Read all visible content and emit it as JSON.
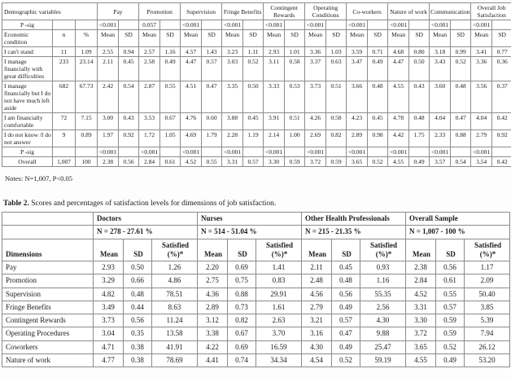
{
  "table1": {
    "corner_label": "Demographic variables",
    "psig_label": "P -sig",
    "subheader_label": "Economic condition",
    "n_label": "n",
    "pct_label": "%",
    "mean_label": "Mean",
    "sd_label": "SD",
    "groups": [
      "Pay",
      "Promotion",
      "Supervision",
      "Fringe Benefits",
      "Contingent Rewards",
      "Operating Conditions",
      "Co-workers",
      "Nature of work",
      "Communication",
      "Overall Job Satisfaction"
    ],
    "psig_top": [
      "<0.001",
      "0.057",
      "<0.001",
      "<0.001",
      "<0.001",
      "<0.001",
      "<0.001",
      "<0.001",
      "<0.001",
      "<0.001"
    ],
    "rows": [
      {
        "label": "I can't stand",
        "n": "11",
        "pct": "1.09",
        "values": [
          "2.55",
          "0.94",
          "2.57",
          "1.16",
          "4.57",
          "1.43",
          "3.23",
          "1.11",
          "2.93",
          "1.01",
          "3.36",
          "1.03",
          "3.59",
          "0.71",
          "4.68",
          "0.80",
          "3.18",
          "0.99",
          "3.41",
          "0.77"
        ]
      },
      {
        "label": "I manage financially with great difficulties",
        "n": "233",
        "pct": "23.14",
        "values": [
          "2.11",
          "0.45",
          "2.58",
          "0.49",
          "4.47",
          "0.57",
          "3.03",
          "0.52",
          "3.11",
          "0.58",
          "3.37",
          "0.63",
          "3.47",
          "0.49",
          "4.47",
          "0.50",
          "3.43",
          "0.52",
          "3.36",
          "0.36"
        ]
      },
      {
        "label": "I manage financially but I do not have much left aside",
        "n": "682",
        "pct": "67.73",
        "values": [
          "2.42",
          "0.54",
          "2.87",
          "0.55",
          "4.51",
          "0.47",
          "3.35",
          "0.50",
          "3.33",
          "0.53",
          "3.73",
          "0.51",
          "3.66",
          "0.48",
          "4.55",
          "0.43",
          "3.60",
          "0.48",
          "3.56",
          "0.37"
        ]
      },
      {
        "label": "I am financially comfortable",
        "n": "72",
        "pct": "7.15",
        "values": [
          "3.00",
          "0.43",
          "3.53",
          "0.67",
          "4.76",
          "0.60",
          "3.88",
          "0.45",
          "3.91",
          "0.51",
          "4.26",
          "0.58",
          "4.23",
          "0.45",
          "4.78",
          "0.48",
          "4.04",
          "0.47",
          "4.04",
          "0.42"
        ]
      },
      {
        "label": "I do not know /I do not answer",
        "n": "9",
        "pct": "0.89",
        "values": [
          "1.97",
          "0.92",
          "1.72",
          "1.05",
          "4.69",
          "1.79",
          "2.28",
          "1.19",
          "2.14",
          "1.00",
          "2.69",
          "0.82",
          "2.89",
          "0.98",
          "4.42",
          "1.75",
          "2.33",
          "0.88",
          "2.79",
          "0.92"
        ]
      }
    ],
    "psig_bottom": [
      "<0.001",
      "<0.001",
      "<0.001",
      "<0.001",
      "<0.001",
      "<0.001",
      "<0.001",
      "<0.001",
      "<0.001",
      "<0.001"
    ],
    "overall": {
      "label": "Overall",
      "n": "1,007",
      "pct": "100",
      "values": [
        "2.38",
        "0.56",
        "2.84",
        "0.61",
        "4.52",
        "0.55",
        "3.31",
        "0.57",
        "3.30",
        "0.59",
        "3.72",
        "0.59",
        "3.65",
        "0.52",
        "4.55",
        "0.49",
        "3.57",
        "0.54",
        "3.54",
        "0.42"
      ]
    },
    "notes": "Notes: N=1,007, P<0.05"
  },
  "table2": {
    "caption_bold": "Table 2.",
    "caption_text": " Scores and percentages of satisfaction levels for dimensions of job satisfaction.",
    "dimensions_label": "Dimensions",
    "mean_label": "Mean",
    "sd_label": "SD",
    "satisfied_label": "Satisfied (%)*",
    "groups": [
      {
        "name": "Doctors",
        "n": "N = 278 - 27.61 %"
      },
      {
        "name": "Nurses",
        "n": "N = 514 - 51.04 %"
      },
      {
        "name": "Other Health Professionals",
        "n": "N = 215 - 21.35 %"
      },
      {
        "name": "Overall Sample",
        "n": "N = 1,007 - 100 %"
      }
    ],
    "rows": [
      {
        "label": "Pay",
        "values": [
          "2.93",
          "0.50",
          "1.26",
          "2.20",
          "0.69",
          "1.41",
          "2.11",
          "0.45",
          "0.93",
          "2.38",
          "0.56",
          "1.17"
        ]
      },
      {
        "label": "Promotion",
        "values": [
          "3.29",
          "0.66",
          "4.86",
          "2.75",
          "0.75",
          "0.83",
          "2.48",
          "0.48",
          "1.16",
          "2.84",
          "0.61",
          "2.09"
        ]
      },
      {
        "label": "Supervision",
        "values": [
          "4.82",
          "0.48",
          "78.51",
          "4.36",
          "0.88",
          "29.91",
          "4.56",
          "0.56",
          "55.35",
          "4.52",
          "0.55",
          "50.40"
        ]
      },
      {
        "label": "Fringe Benefits",
        "values": [
          "3.49",
          "0.44",
          "8.63",
          "2.89",
          "0.73",
          "1.61",
          "2.79",
          "0.49",
          "2.56",
          "3.31",
          "0.57",
          "3.85"
        ]
      },
      {
        "label": "Contingent Rewards",
        "values": [
          "3.73",
          "0.56",
          "11.24",
          "3.12",
          "0.82",
          "2.63",
          "3.21",
          "0.57",
          "4.30",
          "3.30",
          "0.59",
          "5.39"
        ]
      },
      {
        "label": "Operating Procedures",
        "values": [
          "3.04",
          "0.35",
          "13.58",
          "3.38",
          "0.67",
          "3.70",
          "3.16",
          "0.47",
          "9.88",
          "3.72",
          "0.59",
          "7.94"
        ]
      },
      {
        "label": "Coworkers",
        "values": [
          "4.71",
          "0.38",
          "41.91",
          "4.22",
          "0.69",
          "16.59",
          "4.30",
          "0.49",
          "25.47",
          "3.65",
          "0.52",
          "26.12"
        ]
      },
      {
        "label": "Nature of work",
        "values": [
          "4.77",
          "0.38",
          "78.69",
          "4.41",
          "0.74",
          "34.34",
          "4.54",
          "0.52",
          "59.19",
          "4.55",
          "0.49",
          "53.20"
        ]
      }
    ]
  }
}
